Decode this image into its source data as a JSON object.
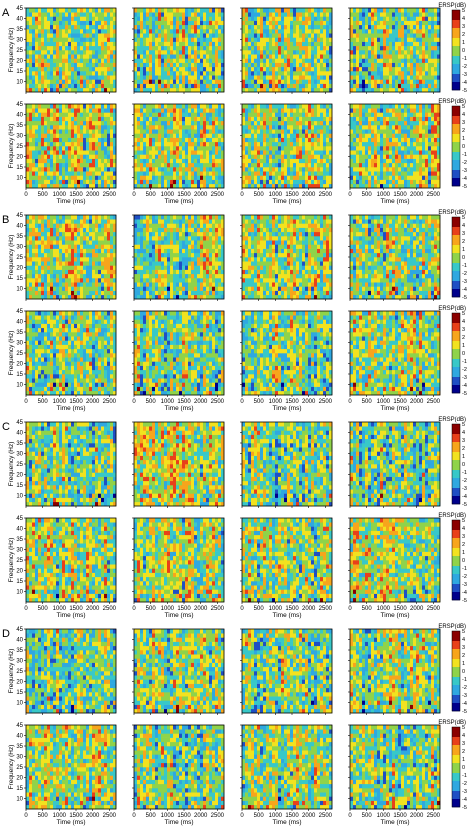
{
  "figure": {
    "panel_labels": [
      "A",
      "B",
      "C",
      "D"
    ],
    "colorbar_label": "ERSP(dB)",
    "colorbar_ticks": [
      "5",
      "4",
      "3",
      "2",
      "1",
      "0",
      "-1",
      "-2",
      "-3",
      "-4",
      "-5"
    ],
    "colormap": [
      "#00008b",
      "#1f4fc4",
      "#2fa8e0",
      "#38c8c8",
      "#8fd34a",
      "#f2e21f",
      "#f7a51c",
      "#e8401a",
      "#8b0000"
    ]
  },
  "chart_data": {
    "type": "heatmap",
    "layout": "4 panels (A-D) × 2 rows × 4 columns of time-frequency ERSP maps",
    "xlabel": "Time (ms)",
    "ylabel": "Frequency (Hz)",
    "x_ticks": [
      "0",
      "500",
      "1000",
      "1500",
      "2000",
      "2500"
    ],
    "y_ticks": [
      "10",
      "15",
      "20",
      "25",
      "30",
      "35",
      "40",
      "45"
    ],
    "xlim": [
      0,
      2700
    ],
    "ylim": [
      5,
      45
    ],
    "color_range": [
      -5,
      5
    ],
    "colorbar_label": "ERSP(dB)",
    "panels": [
      "A",
      "B",
      "C",
      "D"
    ]
  }
}
